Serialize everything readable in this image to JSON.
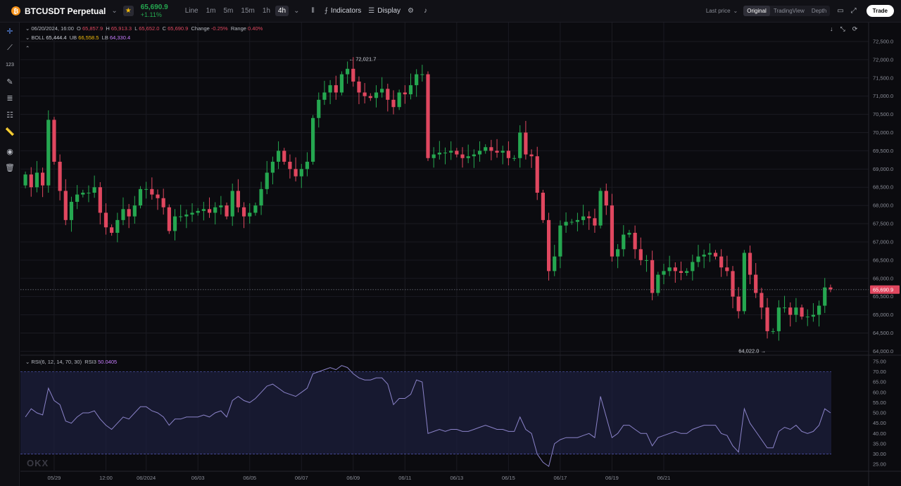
{
  "header": {
    "symbol": "BTCUSDT Perpetual",
    "coin_icon": "bitcoin-icon",
    "price": "65,690.9",
    "change": "+1.11%",
    "timeframes": [
      "Line",
      "1m",
      "5m",
      "15m",
      "1h",
      "4h"
    ],
    "active_timeframe": "4h",
    "indicators_label": "Indicators",
    "display_label": "Display",
    "last_price_label": "Last price",
    "views": [
      "Original",
      "TradingView",
      "Depth"
    ],
    "active_view": "Original",
    "trade_label": "Trade"
  },
  "legend": {
    "date": "06/20/2024, 16:00",
    "o_label": "O",
    "o": "65,857.9",
    "h_label": "H",
    "h": "65,913.3",
    "l_label": "L",
    "l": "65,652.0",
    "c_label": "C",
    "c": "65,690.9",
    "change_label": "Change",
    "change": "-0.25%",
    "range_label": "Range",
    "range": "0.40%",
    "boll_label": "BOLL",
    "boll": "65,444.4",
    "ub_label": "UB",
    "ub": "66,558.5",
    "lb_label": "LB",
    "lb": "64,330.4",
    "rsi_label": "RSI(6, 12, 14, 70, 30)",
    "rsi3_label": "RSI3",
    "rsi3": "50.0405"
  },
  "annotations": {
    "high": "72,021.7",
    "low": "64,022.0",
    "last_price_tag": "65,690.9"
  },
  "watermark": "OKX",
  "colors": {
    "up": "#25a750",
    "down": "#e0475f",
    "rsi": "#8b83c9",
    "bg": "#0b0b0f",
    "grid": "#1b1b22"
  },
  "chart_data": {
    "type": "candlestick",
    "price_axis": [
      "72,500.0",
      "72,000.0",
      "71,500.0",
      "71,000.0",
      "70,500.0",
      "70,000.0",
      "69,500.0",
      "69,000.0",
      "68,500.0",
      "68,000.0",
      "67,500.0",
      "67,000.0",
      "66,500.0",
      "66,000.0",
      "65,500.0",
      "65,000.0",
      "64,500.0",
      "64,000.0"
    ],
    "price_ylim": [
      63950,
      72750
    ],
    "rsi_axis": [
      "75.00",
      "70.00",
      "65.00",
      "60.00",
      "55.00",
      "50.00",
      "45.00",
      "40.00",
      "35.00",
      "30.00",
      "25.00"
    ],
    "rsi_ylim": [
      22,
      77
    ],
    "x_labels": [
      "05/29",
      "12:00",
      "06/2024",
      "06/03",
      "06/05",
      "06/07",
      "06/09",
      "06/11",
      "06/13",
      "06/15",
      "06/17",
      "06/19",
      "06/21"
    ],
    "x_label_index": [
      5,
      14,
      21,
      30,
      39,
      48,
      57,
      66,
      75,
      84,
      93,
      102,
      111
    ],
    "closes": [
      68850,
      68500,
      68900,
      68550,
      70350,
      69200,
      68400,
      67600,
      68100,
      68300,
      68350,
      68350,
      68500,
      67800,
      67400,
      67250,
      67600,
      67900,
      67700,
      68000,
      68450,
      68450,
      68300,
      68200,
      67950,
      67300,
      67700,
      67700,
      67750,
      67800,
      67850,
      67900,
      67800,
      67950,
      68000,
      67700,
      68400,
      67950,
      67700,
      67800,
      68000,
      68450,
      68900,
      69200,
      69500,
      69200,
      69000,
      68800,
      69000,
      69200,
      70400,
      70900,
      71100,
      71300,
      71100,
      71600,
      71750,
      71400,
      71100,
      71000,
      70950,
      71100,
      71200,
      70900,
      70700,
      71100,
      71050,
      71300,
      71600,
      71600,
      69300,
      69400,
      69450,
      69450,
      69500,
      69400,
      69300,
      69350,
      69400,
      69500,
      69600,
      69500,
      69450,
      69500,
      69300,
      69300,
      70000,
      69400,
      69350,
      68350,
      67600,
      66200,
      66600,
      67450,
      67550,
      67550,
      67600,
      67700,
      67650,
      67450,
      68400,
      68000,
      66600,
      66800,
      67200,
      67250,
      66800,
      66500,
      66500,
      65600,
      66100,
      66200,
      66300,
      66200,
      66150,
      66200,
      66450,
      66600,
      66650,
      66700,
      66600,
      66300,
      66200,
      65500,
      65100,
      66700,
      66100,
      65600,
      65200,
      64550,
      64550,
      65200,
      65200,
      65000,
      65200,
      64950,
      64950,
      65000,
      65250,
      65750,
      65700
    ],
    "opens": [
      68550,
      68850,
      68500,
      68900,
      68550,
      70350,
      69200,
      68400,
      67600,
      68100,
      68300,
      68350,
      68350,
      68500,
      67800,
      67400,
      67250,
      67600,
      67900,
      67700,
      68000,
      68450,
      68450,
      68300,
      68200,
      67950,
      67300,
      67700,
      67700,
      67750,
      67800,
      67850,
      67900,
      67800,
      67950,
      68000,
      67700,
      68400,
      67950,
      67700,
      67800,
      68000,
      68450,
      68900,
      69200,
      69500,
      69200,
      69000,
      68800,
      69000,
      69200,
      70400,
      70900,
      71100,
      71300,
      71100,
      71600,
      71750,
      71400,
      71100,
      71000,
      70950,
      71100,
      71200,
      70900,
      70700,
      71100,
      71050,
      71300,
      71600,
      71600,
      69300,
      69400,
      69450,
      69450,
      69500,
      69400,
      69300,
      69350,
      69400,
      69500,
      69600,
      69500,
      69450,
      69500,
      69300,
      69300,
      70000,
      69400,
      69350,
      68350,
      67600,
      66200,
      66600,
      67450,
      67550,
      67550,
      67600,
      67700,
      67650,
      67450,
      68400,
      68000,
      66600,
      66800,
      67200,
      67250,
      66800,
      66500,
      66500,
      65600,
      66100,
      66200,
      66300,
      66200,
      66150,
      66200,
      66450,
      66600,
      66650,
      66700,
      66600,
      66300,
      66200,
      65500,
      65100,
      66700,
      66100,
      65600,
      65200,
      64550,
      64550,
      65200,
      65200,
      65000,
      65200,
      64950,
      64950,
      65000,
      65250,
      65750
    ],
    "rsi": [
      48,
      52,
      50,
      49,
      62,
      56,
      54,
      46,
      45,
      48,
      50,
      50,
      51,
      47,
      44,
      42,
      45,
      48,
      47,
      50,
      53,
      53,
      51,
      50,
      48,
      44,
      47,
      47,
      48,
      48,
      48,
      49,
      48,
      50,
      51,
      48,
      56,
      58,
      56,
      55,
      57,
      60,
      63,
      64,
      62,
      60,
      59,
      58,
      60,
      62,
      69,
      70,
      71,
      72,
      71,
      73,
      72,
      69,
      67,
      66,
      66,
      67,
      67,
      64,
      54,
      57,
      57,
      59,
      66,
      65,
      40,
      41,
      42,
      41,
      42,
      42,
      41,
      41,
      42,
      43,
      44,
      43,
      42,
      42,
      41,
      41,
      48,
      42,
      40,
      30,
      26,
      24,
      35,
      37,
      38,
      38,
      38,
      39,
      40,
      38,
      58,
      48,
      38,
      40,
      44,
      44,
      42,
      40,
      40,
      34,
      38,
      39,
      40,
      41,
      40,
      40,
      42,
      43,
      44,
      44,
      44,
      40,
      39,
      34,
      31,
      52,
      45,
      41,
      37,
      33,
      33,
      41,
      43,
      42,
      44,
      41,
      40,
      41,
      44,
      52,
      50
    ]
  }
}
